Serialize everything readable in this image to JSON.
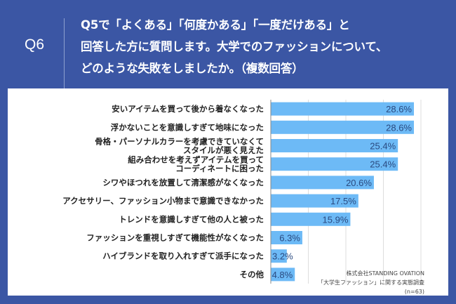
{
  "header": {
    "question_number": "Q6",
    "question_lines": [
      "Q5で「よくある」「何度かある」「一度だけある」と",
      "回答した方に質問します。大学でのファッションについて、",
      "どのような失敗をしましたか。（複数回答）"
    ]
  },
  "chart_data": {
    "type": "bar",
    "orientation": "horizontal",
    "categories": [
      [
        "安いアイテムを買って後から着なくなった"
      ],
      [
        "浮かないことを意識しすぎて地味になった"
      ],
      [
        "骨格・パーソナルカラーを考慮できていなくて",
        "スタイルが悪く見えた"
      ],
      [
        "組み合わせを考えずアイテムを買って",
        "コーディネートに困った"
      ],
      [
        "シワやほつれを放置して清潔感がなくなった"
      ],
      [
        "アクセサリー、ファッション小物まで意識できなかった"
      ],
      [
        "トレンドを意識しすぎて他の人と被った"
      ],
      [
        "ファッションを重視しすぎて機能性がなくなった"
      ],
      [
        "ハイブランドを取り入れすぎて派手になった"
      ],
      [
        "その他"
      ]
    ],
    "values": [
      28.6,
      28.6,
      25.4,
      25.4,
      20.6,
      17.5,
      15.9,
      6.3,
      3.2,
      4.8
    ],
    "value_labels": [
      "28.6%",
      "28.6%",
      "25.4%",
      "25.4%",
      "20.6%",
      "17.5%",
      "15.9%",
      "6.3%",
      "3.2%",
      "4.8%"
    ],
    "xlim": [
      0,
      30
    ],
    "grid_step": 7.5,
    "grid": true,
    "bar_color": "#6dbaf6",
    "label_color": "#2a4a80"
  },
  "source": {
    "lines": [
      "株式会社STANDING OVATION",
      "「大学生ファッション」に関する実態調査",
      "(n=63)"
    ]
  }
}
